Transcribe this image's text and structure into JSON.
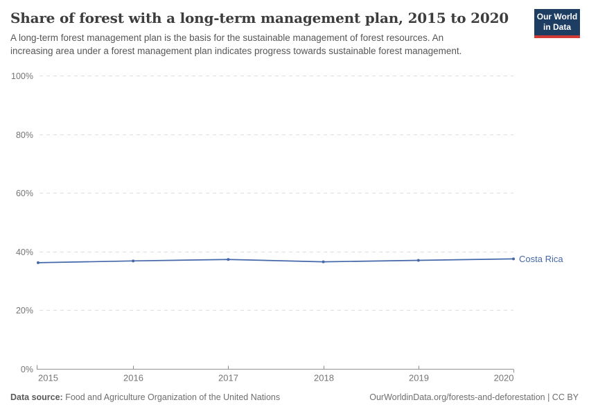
{
  "header": {
    "title": "Share of forest with a long-term management plan, 2015 to 2020",
    "subtitle": "A long-term forest management plan is the basis for the sustainable management of forest resources. An increasing area under a forest management plan indicates progress towards sustainable forest management.",
    "logo": {
      "line1": "Our World",
      "line2": "in Data"
    }
  },
  "chart_data": {
    "type": "line",
    "title": "Share of forest with a long-term management plan, 2015 to 2020",
    "x": [
      2015,
      2016,
      2017,
      2018,
      2019,
      2020
    ],
    "xtick_labels": [
      "2015",
      "2016",
      "2017",
      "2018",
      "2019",
      "2020"
    ],
    "series": [
      {
        "name": "Costa Rica",
        "values": [
          36.2,
          36.8,
          37.3,
          36.5,
          37.0,
          37.5
        ],
        "color": "#4467a9"
      }
    ],
    "xlabel": "",
    "ylabel": "",
    "ylim": [
      0,
      100
    ],
    "yticks": [
      0,
      20,
      40,
      60,
      80,
      100
    ],
    "ytick_labels": [
      "0%",
      "20%",
      "40%",
      "60%",
      "80%",
      "100%"
    ],
    "grid": true,
    "legend_position": "end-of-line"
  },
  "colors": {
    "line": "#4467a9",
    "grid": "#dddddd",
    "axis": "#8f8f8f",
    "tick_label": "#757575",
    "logo_bg": "#1d3d63",
    "logo_accent": "#d13b35"
  },
  "footer": {
    "source_label": "Data source:",
    "source_text": " Food and Agriculture Organization of the United Nations",
    "link_text": "OurWorldinData.org/forests-and-deforestation | CC BY"
  }
}
